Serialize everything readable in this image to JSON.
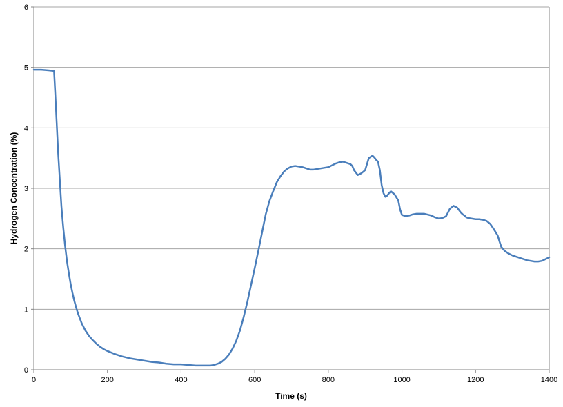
{
  "chart_data": {
    "type": "line",
    "title": "",
    "xlabel": "Time (s)",
    "ylabel": "Hydrogen Concentration (%)",
    "xlim": [
      0,
      1400
    ],
    "ylim": [
      0,
      6
    ],
    "xticks": [
      0,
      200,
      400,
      600,
      800,
      1000,
      1200,
      1400
    ],
    "yticks": [
      0,
      1,
      2,
      3,
      4,
      5,
      6
    ],
    "grid": "horizontal",
    "legend": "none",
    "colors": {
      "line": "#4a7ebb",
      "grid": "#a6a6a6",
      "axis": "#868686"
    },
    "series": [
      {
        "x": [
          0,
          20,
          40,
          55,
          58,
          62,
          66,
          70,
          75,
          80,
          85,
          90,
          95,
          100,
          105,
          110,
          115,
          120,
          125,
          130,
          140,
          150,
          160,
          170,
          180,
          190,
          200,
          220,
          240,
          260,
          280,
          300,
          320,
          340,
          360,
          380,
          400,
          420,
          440,
          460,
          480,
          490,
          500,
          510,
          520,
          530,
          540,
          550,
          560,
          570,
          580,
          590,
          600,
          610,
          620,
          630,
          640,
          650,
          660,
          670,
          680,
          690,
          700,
          710,
          720,
          730,
          740,
          750,
          760,
          770,
          780,
          790,
          800,
          810,
          820,
          830,
          840,
          850,
          860,
          865,
          870,
          880,
          890,
          900,
          910,
          920,
          925,
          930,
          935,
          940,
          945,
          950,
          955,
          960,
          965,
          970,
          980,
          990,
          995,
          1000,
          1010,
          1020,
          1030,
          1040,
          1060,
          1080,
          1090,
          1100,
          1110,
          1120,
          1130,
          1140,
          1150,
          1160,
          1165,
          1170,
          1175,
          1180,
          1190,
          1200,
          1210,
          1220,
          1230,
          1240,
          1250,
          1260,
          1265,
          1270,
          1280,
          1290,
          1300,
          1310,
          1320,
          1330,
          1340,
          1350,
          1360,
          1370,
          1380,
          1390,
          1400
        ],
        "y": [
          4.96,
          4.96,
          4.95,
          4.94,
          4.6,
          4.1,
          3.6,
          3.2,
          2.7,
          2.35,
          2.05,
          1.8,
          1.6,
          1.42,
          1.27,
          1.14,
          1.03,
          0.93,
          0.85,
          0.77,
          0.65,
          0.56,
          0.49,
          0.43,
          0.38,
          0.34,
          0.31,
          0.26,
          0.22,
          0.19,
          0.17,
          0.15,
          0.13,
          0.12,
          0.1,
          0.09,
          0.09,
          0.08,
          0.07,
          0.07,
          0.07,
          0.08,
          0.1,
          0.13,
          0.18,
          0.25,
          0.35,
          0.48,
          0.65,
          0.87,
          1.12,
          1.4,
          1.68,
          1.97,
          2.27,
          2.57,
          2.79,
          2.95,
          3.1,
          3.2,
          3.28,
          3.33,
          3.36,
          3.37,
          3.36,
          3.35,
          3.33,
          3.31,
          3.31,
          3.32,
          3.33,
          3.34,
          3.35,
          3.38,
          3.41,
          3.43,
          3.44,
          3.42,
          3.4,
          3.37,
          3.3,
          3.22,
          3.25,
          3.3,
          3.5,
          3.54,
          3.51,
          3.47,
          3.44,
          3.3,
          3.05,
          2.92,
          2.86,
          2.88,
          2.92,
          2.95,
          2.9,
          2.8,
          2.65,
          2.56,
          2.54,
          2.55,
          2.57,
          2.58,
          2.58,
          2.55,
          2.52,
          2.5,
          2.51,
          2.54,
          2.66,
          2.71,
          2.68,
          2.6,
          2.57,
          2.55,
          2.52,
          2.51,
          2.5,
          2.49,
          2.49,
          2.48,
          2.46,
          2.41,
          2.32,
          2.22,
          2.12,
          2.03,
          1.96,
          1.92,
          1.89,
          1.87,
          1.85,
          1.83,
          1.81,
          1.8,
          1.79,
          1.79,
          1.8,
          1.83,
          1.86
        ]
      }
    ]
  }
}
